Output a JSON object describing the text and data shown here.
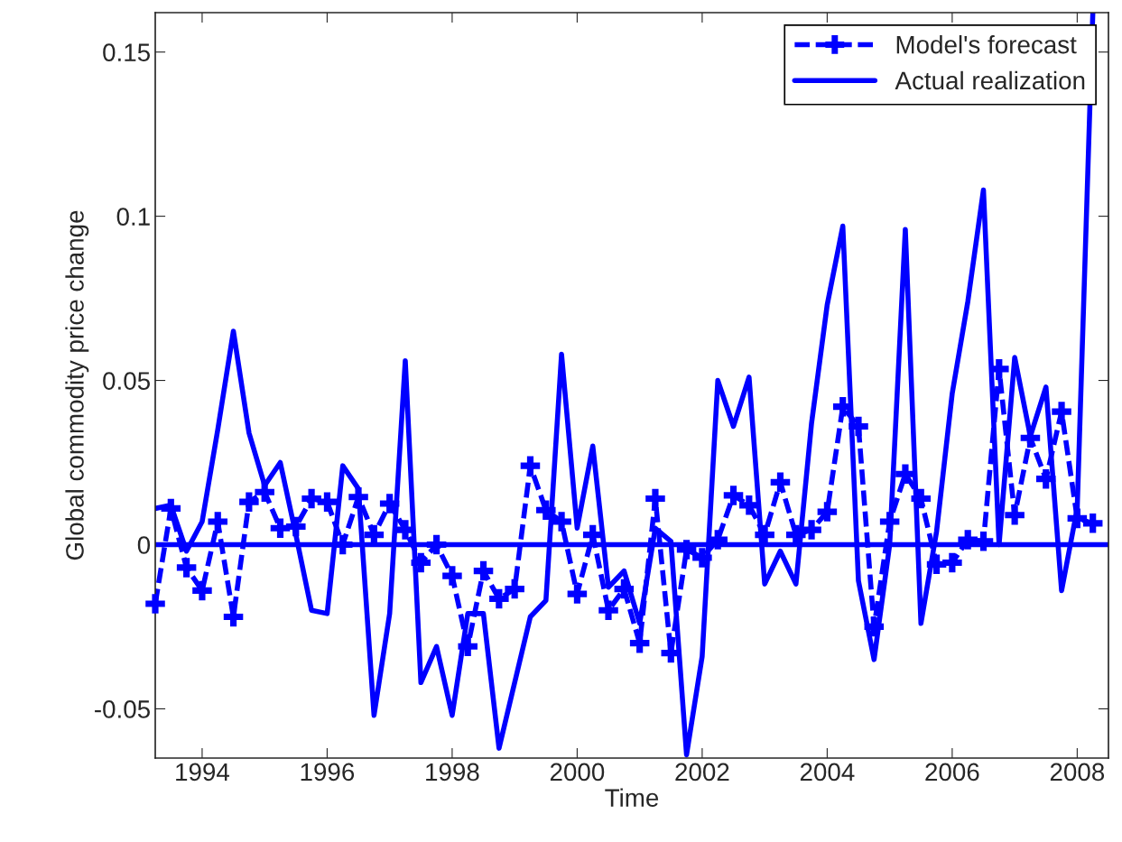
{
  "chart_data": {
    "type": "line",
    "xlabel": "Time",
    "ylabel": "Global commodity price change",
    "x": [
      1993.25,
      1993.5,
      1993.75,
      1994,
      1994.25,
      1994.5,
      1994.75,
      1995,
      1995.25,
      1995.5,
      1995.75,
      1996,
      1996.25,
      1996.5,
      1996.75,
      1997,
      1997.25,
      1997.5,
      1997.75,
      1998,
      1998.25,
      1998.5,
      1998.75,
      1999,
      1999.25,
      1999.5,
      1999.75,
      2000,
      2000.25,
      2000.5,
      2000.75,
      2001,
      2001.25,
      2001.5,
      2001.75,
      2002,
      2002.25,
      2002.5,
      2002.75,
      2003,
      2003.25,
      2003.5,
      2003.75,
      2004,
      2004.25,
      2004.5,
      2004.75,
      2005,
      2005.25,
      2005.5,
      2005.75,
      2006,
      2006.25,
      2006.5,
      2006.75,
      2007,
      2007.25,
      2007.5,
      2007.75,
      2008,
      2008.25
    ],
    "series": [
      {
        "name": "Model's forecast",
        "color": "#0000ff",
        "marker": "cross",
        "line_style": "dashed",
        "values": [
          -0.018,
          0.011,
          -0.007,
          -0.014,
          0.007,
          -0.022,
          0.013,
          0.016,
          0.005,
          0.0055,
          0.014,
          0.013,
          0.0,
          0.0145,
          0.003,
          0.0125,
          0.0045,
          -0.0055,
          0.0,
          -0.0095,
          -0.031,
          -0.008,
          -0.0165,
          -0.0135,
          0.024,
          0.0105,
          0.007,
          -0.015,
          0.003,
          -0.02,
          -0.0135,
          -0.03,
          0.014,
          -0.033,
          -0.0015,
          -0.004,
          0.0015,
          0.015,
          0.012,
          0.003,
          0.019,
          0.003,
          0.0045,
          0.01,
          0.042,
          0.036,
          -0.025,
          0.007,
          0.0215,
          0.014,
          -0.006,
          -0.0055,
          0.0015,
          0.001,
          0.0535,
          0.009,
          0.0325,
          0.02,
          0.0405,
          0.008,
          0.0065
        ]
      },
      {
        "name": "Actual realization",
        "color": "#0000ff",
        "marker": "none",
        "line_style": "solid",
        "values": [
          0.011,
          0.012,
          -0.002,
          0.007,
          0.035,
          0.065,
          0.034,
          0.018,
          0.025,
          0.003,
          -0.02,
          -0.021,
          0.024,
          0.017,
          -0.052,
          -0.021,
          0.056,
          -0.042,
          -0.031,
          -0.052,
          -0.021,
          -0.021,
          -0.062,
          -0.042,
          -0.022,
          -0.017,
          0.058,
          0.005,
          0.03,
          -0.013,
          -0.008,
          -0.024,
          0.005,
          0.001,
          -0.064,
          -0.034,
          0.05,
          0.036,
          0.051,
          -0.012,
          -0.002,
          -0.012,
          0.037,
          0.073,
          0.097,
          -0.011,
          -0.035,
          0.0,
          0.096,
          -0.024,
          0.004,
          0.046,
          0.074,
          0.108,
          0.0,
          0.057,
          0.033,
          0.048,
          -0.014,
          0.011,
          0.162
        ]
      }
    ],
    "ref_lines": [
      {
        "axis": "y",
        "value": 0,
        "color": "#0000ff",
        "line_style": "solid"
      }
    ],
    "xlim": [
      1993.25,
      2008.5
    ],
    "xticks": [
      1994,
      1996,
      1998,
      2000,
      2002,
      2004,
      2006,
      2008
    ],
    "ylim": [
      -0.065,
      0.162
    ],
    "yticks": [
      -0.05,
      0,
      0.05,
      0.1,
      0.15
    ],
    "legend": "top right",
    "grid": false
  }
}
